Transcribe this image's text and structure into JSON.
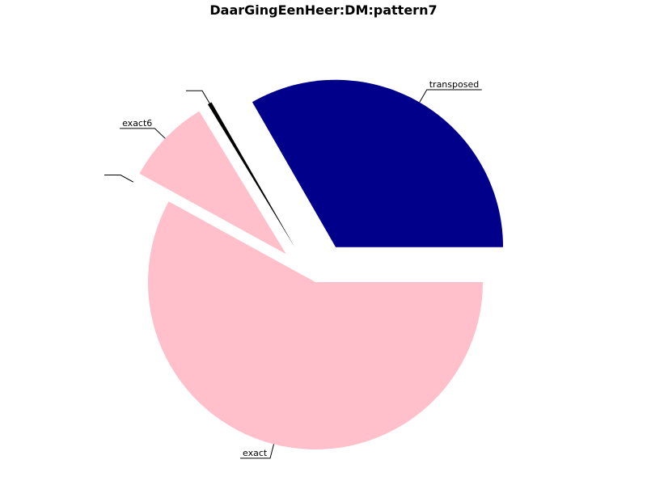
{
  "chart_data": {
    "type": "pie",
    "title": "DaarGingEenHeer:DM:pattern7",
    "slices": [
      {
        "label": "transposed",
        "value": 33.3,
        "color": "#00008B",
        "exploded": true
      },
      {
        "label": "",
        "value": 0.4,
        "color": "#000000",
        "exploded": true
      },
      {
        "label": "exact6",
        "value": 8.3,
        "color": "#FFC0CB",
        "exploded": true
      },
      {
        "label": "",
        "value": 0.0,
        "color": "#FFFFFF",
        "exploded": true
      },
      {
        "label": "exact",
        "value": 58.0,
        "color": "#FFC0CB",
        "exploded": false
      }
    ],
    "legend": "none"
  }
}
